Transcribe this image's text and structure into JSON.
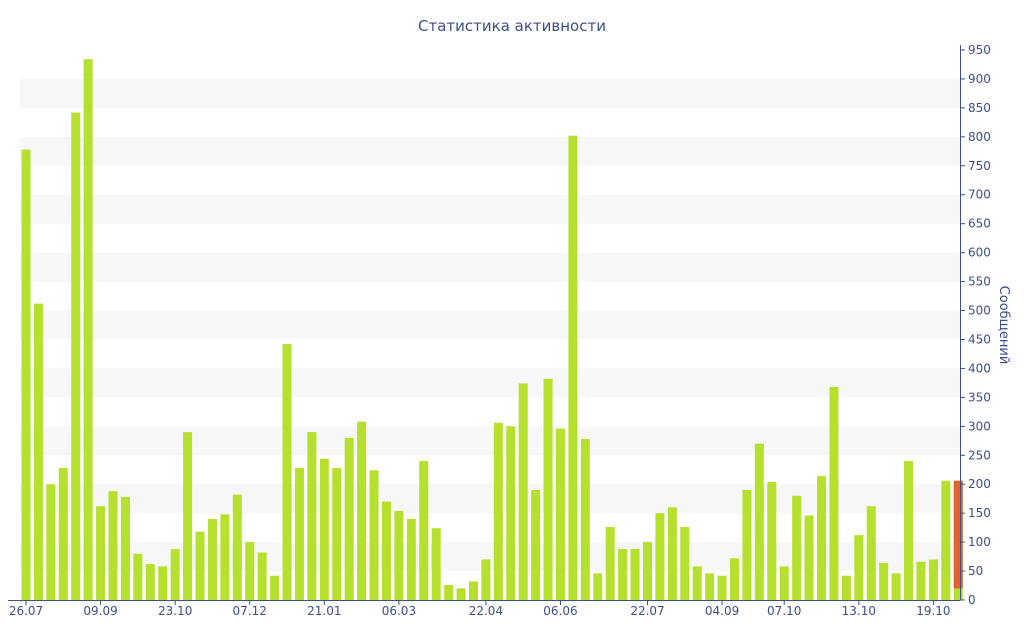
{
  "chart_data": {
    "type": "bar",
    "title": "Статистика активности",
    "ylabel": "Сообщений",
    "ylim": [
      0,
      950
    ],
    "y_ticks": [
      0,
      50,
      100,
      150,
      200,
      250,
      300,
      350,
      400,
      450,
      500,
      550,
      600,
      650,
      700,
      750,
      800,
      850,
      900,
      950
    ],
    "x_tick_labels": [
      {
        "label": "26.07",
        "index": 0
      },
      {
        "label": "09.09",
        "index": 6
      },
      {
        "label": "23.10",
        "index": 12
      },
      {
        "label": "07.12",
        "index": 18
      },
      {
        "label": "21.01",
        "index": 24
      },
      {
        "label": "06.03",
        "index": 30
      },
      {
        "label": "22.04",
        "index": 37
      },
      {
        "label": "06.06",
        "index": 43
      },
      {
        "label": "22.07",
        "index": 50
      },
      {
        "label": "04.09",
        "index": 56
      },
      {
        "label": "07.10",
        "index": 61
      },
      {
        "label": "13.10",
        "index": 67
      },
      {
        "label": "19.10",
        "index": 73
      }
    ],
    "grid": "horizontal bands",
    "colors": {
      "bar": "#b5e02d",
      "highlight": "#e0622e",
      "text": "#3c4f8a",
      "band": "#f7f7f7"
    },
    "series": [
      {
        "values": [
          778,
          512,
          200,
          228,
          842,
          934,
          162,
          188,
          178,
          80,
          62,
          58,
          88,
          290,
          118,
          140,
          148,
          182,
          100,
          82,
          42,
          442,
          228,
          290,
          244,
          228,
          280,
          308,
          224,
          170,
          154,
          140,
          240,
          124,
          26,
          20,
          32,
          70,
          306,
          300,
          374,
          190,
          382,
          296,
          802,
          278,
          46,
          126,
          88,
          88,
          100,
          150,
          160,
          126,
          58,
          46,
          42,
          72,
          190,
          270,
          204,
          58,
          180,
          146,
          214,
          368,
          42,
          112,
          162,
          64,
          46,
          240,
          66,
          70,
          206,
          206
        ]
      }
    ],
    "highlight_bar": {
      "index": 75,
      "from": 20,
      "to": 206
    }
  }
}
